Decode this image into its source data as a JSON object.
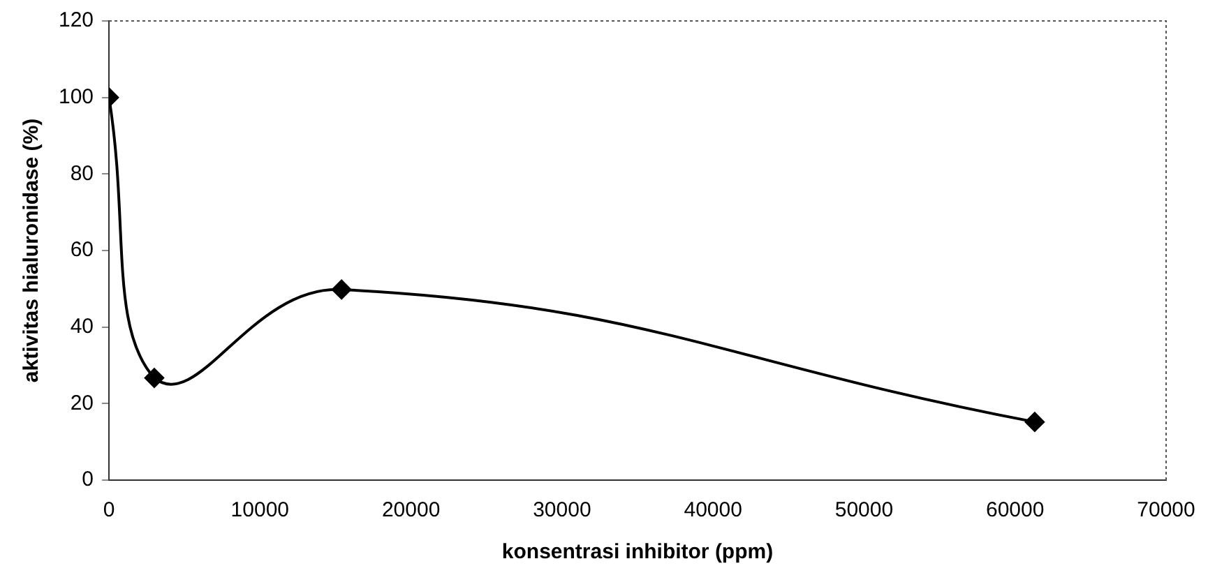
{
  "chart_data": {
    "type": "line",
    "xlabel": "konsentrasi inhibitor (ppm)",
    "ylabel": "aktivitas hialuronidase (%)",
    "x": [
      0,
      3000,
      15400,
      61300
    ],
    "series": [
      {
        "color": "#000000",
        "values": [
          100,
          26.7,
          49.8,
          15.2
        ]
      }
    ],
    "xlim": [
      0,
      70000
    ],
    "xticks": [
      0,
      10000,
      20000,
      30000,
      40000,
      50000,
      60000,
      70000
    ],
    "ylim": [
      0,
      120
    ],
    "yticks": [
      0,
      20,
      40,
      60,
      80,
      100,
      120
    ],
    "grid": false,
    "legend": false,
    "marker": "diamond",
    "line_style": "solid"
  }
}
